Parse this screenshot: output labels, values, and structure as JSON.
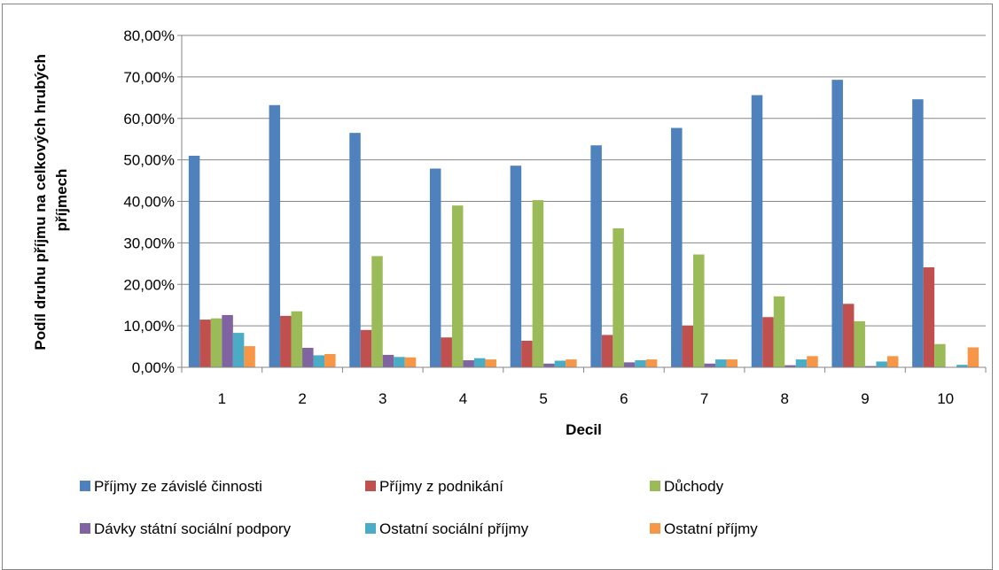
{
  "chart_data": {
    "type": "bar",
    "xlabel": "Decil",
    "ylabel_lines": [
      "Podíl druhu příjmu na celkových hrubých",
      "příjmech"
    ],
    "categories": [
      "1",
      "2",
      "3",
      "4",
      "5",
      "6",
      "7",
      "8",
      "9",
      "10"
    ],
    "ylim": [
      0,
      80
    ],
    "yticks": [
      "0,00%",
      "10,00%",
      "20,00%",
      "30,00%",
      "40,00%",
      "50,00%",
      "60,00%",
      "70,00%",
      "80,00%"
    ],
    "grid": true,
    "legend_position": "bottom",
    "series": [
      {
        "name": "Příjmy ze závislé činnosti",
        "color": "#4F81BD",
        "values": [
          51.0,
          63.2,
          56.5,
          47.9,
          48.6,
          53.5,
          57.7,
          65.6,
          69.3,
          64.6
        ]
      },
      {
        "name": "Příjmy z podnikání",
        "color": "#C0504D",
        "values": [
          11.5,
          12.4,
          9.0,
          7.2,
          6.4,
          7.8,
          10.0,
          12.1,
          15.3,
          24.1
        ]
      },
      {
        "name": "Důchody",
        "color": "#9BBB59",
        "values": [
          11.8,
          13.5,
          26.8,
          39.0,
          40.3,
          33.5,
          27.2,
          17.1,
          11.1,
          5.6
        ]
      },
      {
        "name": "Dávky státní sociální podpory",
        "color": "#8064A2",
        "values": [
          12.6,
          4.7,
          3.0,
          1.7,
          0.9,
          1.2,
          0.9,
          0.5,
          0.3,
          0.1
        ]
      },
      {
        "name": "Ostatní sociální příjmy",
        "color": "#4BACC6",
        "values": [
          8.3,
          2.9,
          2.5,
          2.2,
          1.6,
          1.7,
          1.9,
          1.9,
          1.4,
          0.6
        ]
      },
      {
        "name": "Ostatní příjmy",
        "color": "#F79646",
        "values": [
          5.1,
          3.2,
          2.4,
          1.9,
          1.9,
          1.9,
          1.9,
          2.7,
          2.7,
          4.8
        ]
      }
    ]
  }
}
